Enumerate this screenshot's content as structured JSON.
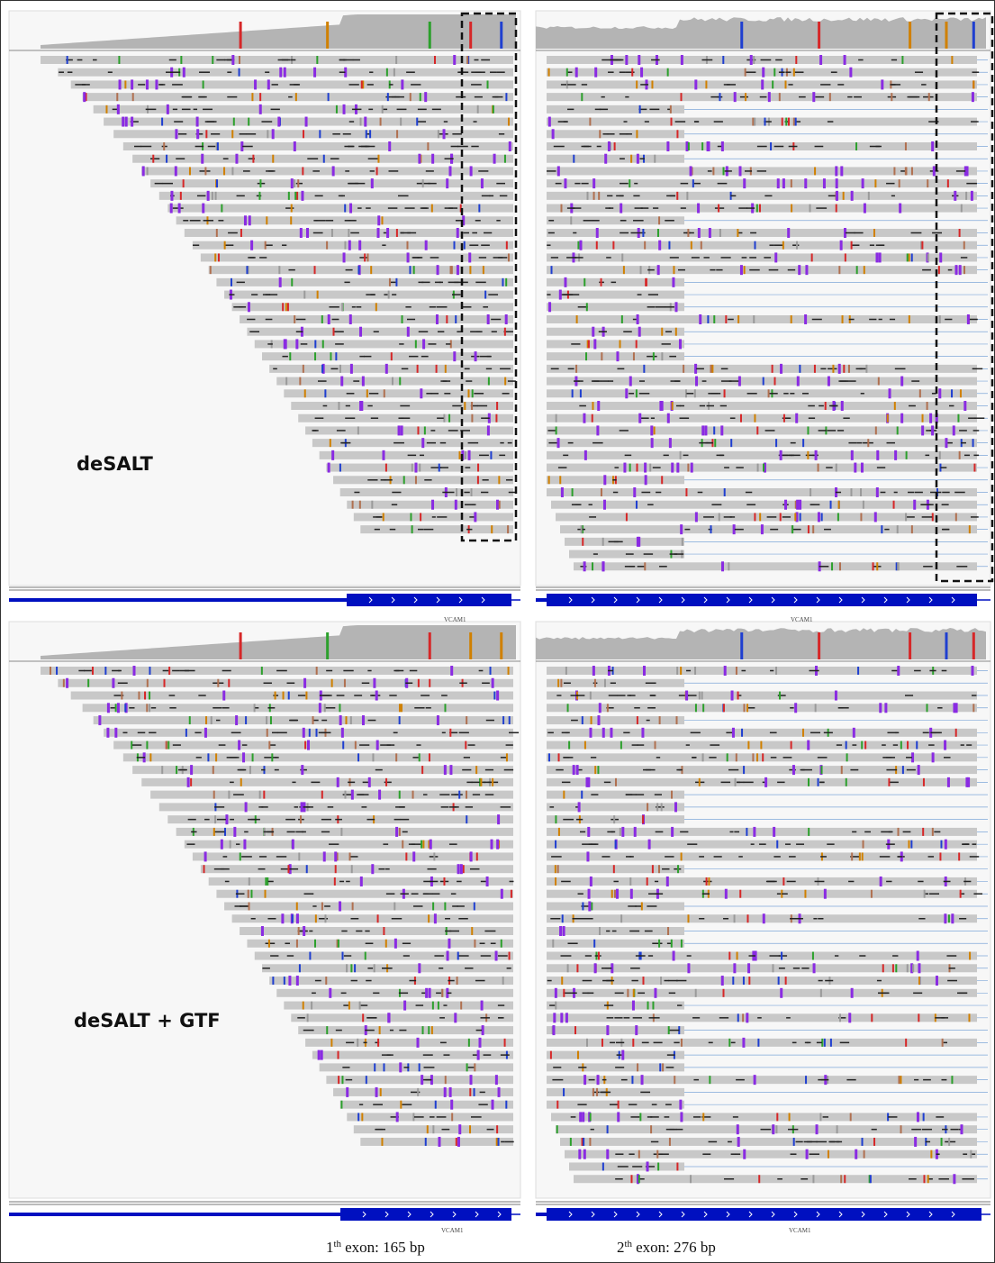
{
  "panels": [
    {
      "label": "deSALT",
      "gene_left": "VCAM1",
      "gene_right": "VCAM1"
    },
    {
      "label": "deSALT + GTF",
      "gene_left": "VCAM1",
      "gene_right": "VCAM1"
    }
  ],
  "captions": [
    {
      "number": "1",
      "suffix": "th",
      "text": "exon: 165 bp"
    },
    {
      "number": "2",
      "suffix": "th",
      "text": "exon: 276 bp"
    }
  ]
}
